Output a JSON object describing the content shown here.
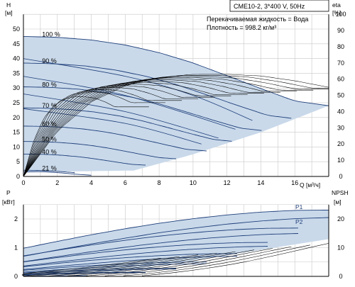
{
  "header": {
    "model": "CME10-2, 3*400 V, 50Hz",
    "liquid": "Перекачиваемая жидкость = Вода",
    "density": "Плотность = 998.2 кг/м³"
  },
  "colors": {
    "area_fill": "#c9d9ea",
    "curve_line": "#1f3f7a",
    "eta_line": "#000000",
    "grid": "#c8c8c8",
    "axis": "#000000"
  },
  "chart_data": [
    {
      "type": "line",
      "name": "head",
      "x_axis": {
        "label": "Q [м³/ч]",
        "min": 0,
        "max": 18,
        "ticks": [
          "0",
          "2",
          "4",
          "6",
          "8",
          "10",
          "12",
          "14",
          "16"
        ]
      },
      "y_left": {
        "label_top": "H",
        "label_unit": "[м]",
        "min": 0,
        "max": 55,
        "ticks": [
          "0",
          "5",
          "10",
          "15",
          "20",
          "25",
          "30",
          "35",
          "40",
          "45",
          "50"
        ]
      },
      "y_right": {
        "label": "eta",
        "label_unit": "[%]",
        "min": 0,
        "max": 100,
        "ticks": [
          "0",
          "10",
          "20",
          "30",
          "40",
          "50",
          "60",
          "70",
          "80",
          "90",
          "100"
        ]
      },
      "grid": true,
      "speed_labels": [
        "100 %",
        "90 %",
        "80 %",
        "70 %",
        "60 %",
        "50 %",
        "40 %",
        "21 %"
      ],
      "speeds": [
        1.0,
        0.9,
        0.8,
        0.7,
        0.6,
        0.5,
        0.4,
        0.21
      ],
      "full_speed_head": {
        "q": [
          0,
          2,
          4,
          6,
          8,
          10,
          12,
          14,
          16,
          18
        ],
        "h": [
          47.5,
          47.2,
          46.3,
          44.6,
          42.0,
          38.5,
          34.2,
          29.8,
          25.6,
          24.0
        ]
      },
      "extra_head_curves": [
        {
          "q": [
            0,
            6,
            10.5
          ],
          "h": [
            23,
            18,
            11
          ]
        },
        {
          "q": [
            0,
            6,
            11.5
          ],
          "h": [
            28,
            22,
            13
          ]
        },
        {
          "q": [
            0,
            6,
            12.5
          ],
          "h": [
            34,
            27.5,
            16
          ]
        },
        {
          "q": [
            0,
            6,
            10,
            13.5
          ],
          "h": [
            40,
            34,
            27.5,
            19
          ]
        }
      ],
      "min_curve": {
        "q": [
          0,
          1,
          2,
          3,
          4
        ],
        "h": [
          1.5,
          1.6,
          1.3,
          0.8,
          0.4
        ]
      },
      "lower_boundary": {
        "q": [
          0,
          6.5,
          10,
          14,
          18
        ],
        "h": [
          1.5,
          2,
          7.5,
          15,
          24
        ]
      },
      "eta_curves_full_speed": {
        "q": [
          0,
          2,
          4,
          6,
          8,
          10,
          12,
          14,
          16,
          17,
          18
        ],
        "eta": [
          0,
          28,
          46,
          56,
          61,
          63,
          63,
          62,
          59,
          57,
          55
        ]
      },
      "eta_curve_count": 14
    },
    {
      "type": "line",
      "name": "power_npsh",
      "x_axis": {
        "min": 0,
        "max": 18
      },
      "y_left": {
        "label_top": "P",
        "label_unit": "[кВт]",
        "min": 0,
        "max": 2.5,
        "ticks": [
          "0",
          "1",
          "2"
        ]
      },
      "y_right": {
        "label": "NPSH",
        "label_unit": "[м]",
        "min": 0,
        "max": 25,
        "ticks": [
          "0",
          "10",
          "20"
        ]
      },
      "grid": true,
      "series_labels": [
        "P1",
        "P2"
      ],
      "p1_full_speed": {
        "q": [
          0,
          2,
          4,
          6,
          8,
          10,
          12,
          14,
          16,
          18
        ],
        "p": [
          0.98,
          1.22,
          1.45,
          1.66,
          1.85,
          2.01,
          2.14,
          2.24,
          2.3,
          2.31
        ]
      },
      "p2_full_speed": {
        "q": [
          0,
          2,
          4,
          6,
          8,
          10,
          12,
          14,
          16,
          18
        ],
        "p": [
          0.7,
          0.92,
          1.13,
          1.33,
          1.52,
          1.68,
          1.82,
          1.93,
          2.01,
          2.05
        ]
      },
      "npsh": {
        "q": [
          7,
          9,
          11,
          13,
          15,
          17,
          18
        ],
        "npsh": [
          0.2,
          1.4,
          3.0,
          5.0,
          7.5,
          10.2,
          11.5
        ]
      }
    }
  ]
}
